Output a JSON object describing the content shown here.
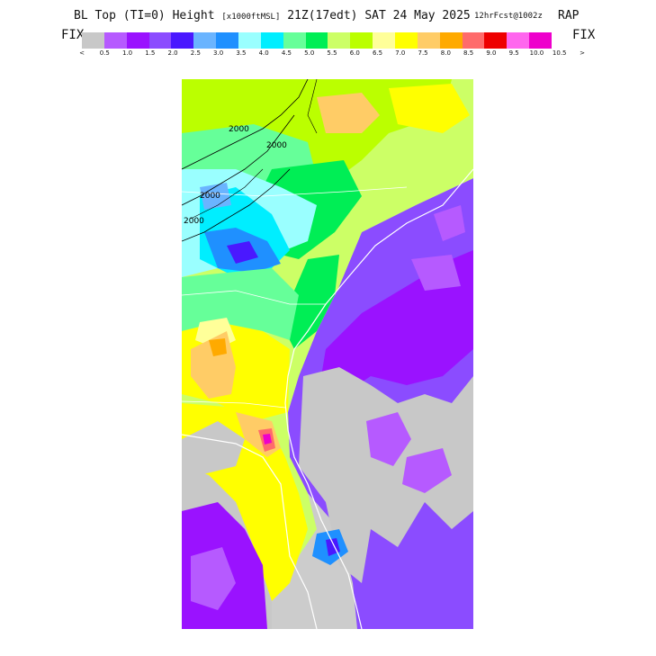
{
  "header": {
    "title_prefix": "BL Top (TI=0) Height",
    "title_units": "[x1000ftMSL]",
    "valid_time": "21Z(17edt) SAT 24 May 2025",
    "run_info": "12hrFcst@1002z",
    "model": "RAP"
  },
  "colorbar": {
    "fix_left": "FIX",
    "fix_right": "FIX",
    "colors": [
      "#c8c8c8",
      "#b65aff",
      "#9a12ff",
      "#8b4cff",
      "#4a18ff",
      "#6ab4ff",
      "#1f90ff",
      "#9affff",
      "#00eeff",
      "#66ff99",
      "#00ee55",
      "#ccff66",
      "#bbff00",
      "#ffff99",
      "#ffff00",
      "#ffcc66",
      "#ffaa00",
      "#ff6b6b",
      "#ee0000",
      "#ff66ee",
      "#ee00cc"
    ],
    "tick_labels": [
      "<",
      "0.5",
      "1.0",
      "1.5",
      "2.0",
      "2.5",
      "3.0",
      "3.5",
      "4.0",
      "4.5",
      "5.0",
      "5.5",
      "6.0",
      "6.5",
      "7.0",
      "7.5",
      "8.0",
      "8.5",
      "9.0",
      "9.5",
      "10.0",
      "10.5",
      ">"
    ]
  },
  "map": {
    "contour_labels": [
      "2000",
      "2000",
      "2000",
      "2000"
    ]
  }
}
